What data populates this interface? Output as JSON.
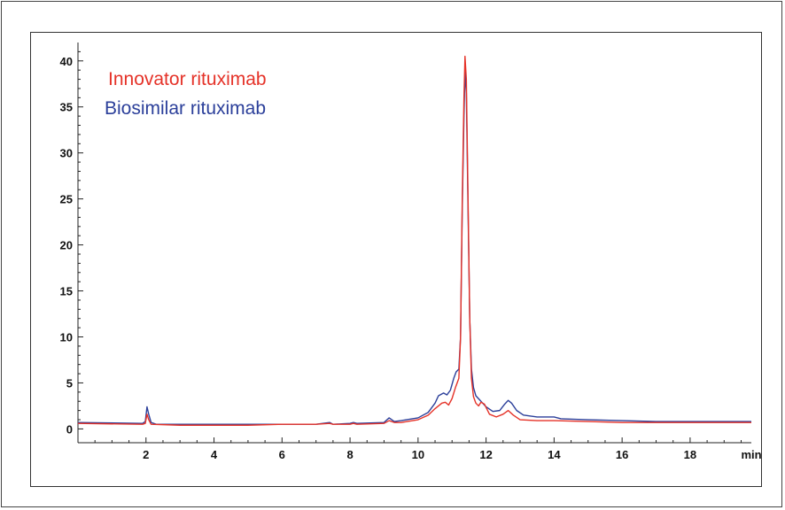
{
  "chart_data": {
    "type": "line",
    "xlabel": "min",
    "ylabel": "",
    "xlim": [
      0,
      19.8
    ],
    "ylim": [
      -1.5,
      42
    ],
    "x_ticks": [
      "2",
      "4",
      "6",
      "8",
      "10",
      "12",
      "14",
      "16",
      "18"
    ],
    "y_ticks": [
      "0",
      "5",
      "10",
      "15",
      "20",
      "25",
      "30",
      "35",
      "40"
    ],
    "grid": false,
    "legend_position": "top-left",
    "series": [
      {
        "name": "Innovator rituximab",
        "color": "#e53228",
        "points": [
          [
            0,
            0.6
          ],
          [
            1.9,
            0.5
          ],
          [
            1.98,
            0.6
          ],
          [
            2.03,
            1.6
          ],
          [
            2.08,
            1.0
          ],
          [
            2.15,
            0.5
          ],
          [
            3,
            0.4
          ],
          [
            4,
            0.4
          ],
          [
            5,
            0.4
          ],
          [
            6,
            0.5
          ],
          [
            7,
            0.5
          ],
          [
            7.4,
            0.6
          ],
          [
            7.5,
            0.5
          ],
          [
            8,
            0.5
          ],
          [
            8.1,
            0.6
          ],
          [
            8.2,
            0.5
          ],
          [
            9,
            0.6
          ],
          [
            9.15,
            0.9
          ],
          [
            9.3,
            0.7
          ],
          [
            9.5,
            0.7
          ],
          [
            10,
            1.0
          ],
          [
            10.3,
            1.5
          ],
          [
            10.5,
            2.2
          ],
          [
            10.7,
            2.8
          ],
          [
            10.8,
            2.9
          ],
          [
            10.9,
            2.6
          ],
          [
            11.0,
            3.3
          ],
          [
            11.1,
            4.5
          ],
          [
            11.2,
            5.5
          ],
          [
            11.25,
            10
          ],
          [
            11.3,
            25
          ],
          [
            11.35,
            36
          ],
          [
            11.38,
            40.5
          ],
          [
            11.42,
            38
          ],
          [
            11.47,
            25
          ],
          [
            11.52,
            12
          ],
          [
            11.57,
            5.5
          ],
          [
            11.63,
            3.5
          ],
          [
            11.7,
            2.8
          ],
          [
            11.78,
            2.5
          ],
          [
            11.85,
            2.9
          ],
          [
            11.95,
            2.7
          ],
          [
            12.1,
            1.6
          ],
          [
            12.3,
            1.3
          ],
          [
            12.5,
            1.6
          ],
          [
            12.65,
            2.0
          ],
          [
            12.8,
            1.5
          ],
          [
            13.0,
            1.0
          ],
          [
            13.5,
            0.9
          ],
          [
            14,
            0.9
          ],
          [
            15,
            0.8
          ],
          [
            16,
            0.7
          ],
          [
            17,
            0.7
          ],
          [
            18,
            0.7
          ],
          [
            19,
            0.7
          ],
          [
            19.8,
            0.7
          ]
        ]
      },
      {
        "name": "Biosimilar rituximab",
        "color": "#2b3f9a",
        "points": [
          [
            0,
            0.7
          ],
          [
            1.9,
            0.6
          ],
          [
            1.98,
            0.8
          ],
          [
            2.03,
            2.4
          ],
          [
            2.08,
            1.6
          ],
          [
            2.15,
            0.7
          ],
          [
            2.3,
            0.5
          ],
          [
            3,
            0.5
          ],
          [
            4,
            0.5
          ],
          [
            5,
            0.5
          ],
          [
            6,
            0.5
          ],
          [
            7,
            0.5
          ],
          [
            7.4,
            0.7
          ],
          [
            7.5,
            0.5
          ],
          [
            8,
            0.6
          ],
          [
            8.1,
            0.7
          ],
          [
            8.2,
            0.6
          ],
          [
            9,
            0.7
          ],
          [
            9.15,
            1.2
          ],
          [
            9.3,
            0.8
          ],
          [
            9.5,
            0.9
          ],
          [
            10,
            1.2
          ],
          [
            10.3,
            1.8
          ],
          [
            10.5,
            2.8
          ],
          [
            10.6,
            3.6
          ],
          [
            10.75,
            3.9
          ],
          [
            10.85,
            3.7
          ],
          [
            10.95,
            4.2
          ],
          [
            11.05,
            5.5
          ],
          [
            11.12,
            6.2
          ],
          [
            11.2,
            6.5
          ],
          [
            11.25,
            10
          ],
          [
            11.3,
            24
          ],
          [
            11.35,
            34
          ],
          [
            11.38,
            38.8
          ],
          [
            11.42,
            36.5
          ],
          [
            11.47,
            24
          ],
          [
            11.52,
            12
          ],
          [
            11.57,
            6.5
          ],
          [
            11.63,
            4.5
          ],
          [
            11.7,
            3.6
          ],
          [
            11.8,
            3.2
          ],
          [
            11.9,
            2.8
          ],
          [
            12.0,
            2.4
          ],
          [
            12.2,
            1.9
          ],
          [
            12.4,
            2.0
          ],
          [
            12.55,
            2.7
          ],
          [
            12.65,
            3.1
          ],
          [
            12.75,
            2.8
          ],
          [
            12.9,
            2.0
          ],
          [
            13.1,
            1.5
          ],
          [
            13.5,
            1.3
          ],
          [
            14,
            1.3
          ],
          [
            14.2,
            1.1
          ],
          [
            15,
            1.0
          ],
          [
            16,
            0.9
          ],
          [
            17,
            0.8
          ],
          [
            18,
            0.8
          ],
          [
            19,
            0.8
          ],
          [
            19.8,
            0.8
          ]
        ]
      }
    ]
  }
}
